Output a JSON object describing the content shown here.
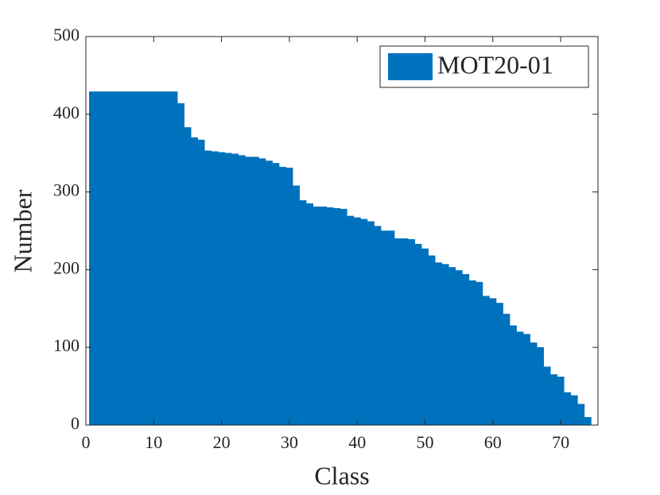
{
  "chart_data": {
    "type": "bar",
    "x_label": "Class",
    "y_label": "Number",
    "legend_position": "top-right",
    "bar_width": 1,
    "series": [
      {
        "name": "MOT20-01",
        "color": "#0072BD",
        "x": [
          1,
          2,
          3,
          4,
          5,
          6,
          7,
          8,
          9,
          10,
          11,
          12,
          13,
          14,
          15,
          16,
          17,
          18,
          19,
          20,
          21,
          22,
          23,
          24,
          25,
          26,
          27,
          28,
          29,
          30,
          31,
          32,
          33,
          34,
          35,
          36,
          37,
          38,
          39,
          40,
          41,
          42,
          43,
          44,
          45,
          46,
          47,
          48,
          49,
          50,
          51,
          52,
          53,
          54,
          55,
          56,
          57,
          58,
          59,
          60,
          61,
          62,
          63,
          64,
          65,
          66,
          67,
          68,
          69,
          70,
          71,
          72,
          73,
          74
        ],
        "values": [
          429,
          429,
          429,
          429,
          429,
          429,
          429,
          429,
          429,
          429,
          429,
          429,
          429,
          414,
          383,
          370,
          367,
          353,
          352,
          351,
          350,
          349,
          347,
          345,
          345,
          343,
          340,
          337,
          332,
          331,
          308,
          289,
          285,
          281,
          281,
          280,
          279,
          278,
          269,
          267,
          265,
          262,
          256,
          250,
          250,
          240,
          240,
          239,
          233,
          227,
          218,
          209,
          207,
          203,
          199,
          194,
          186,
          184,
          166,
          163,
          157,
          143,
          128,
          120,
          117,
          106,
          100,
          75,
          65,
          62,
          42,
          38,
          27,
          10
        ]
      }
    ],
    "xlim": [
      0,
      75.5
    ],
    "xticks": [
      0,
      10,
      20,
      30,
      40,
      50,
      60,
      70
    ],
    "ylim": [
      0,
      500
    ],
    "yticks": [
      0,
      100,
      200,
      300,
      400,
      500
    ]
  }
}
